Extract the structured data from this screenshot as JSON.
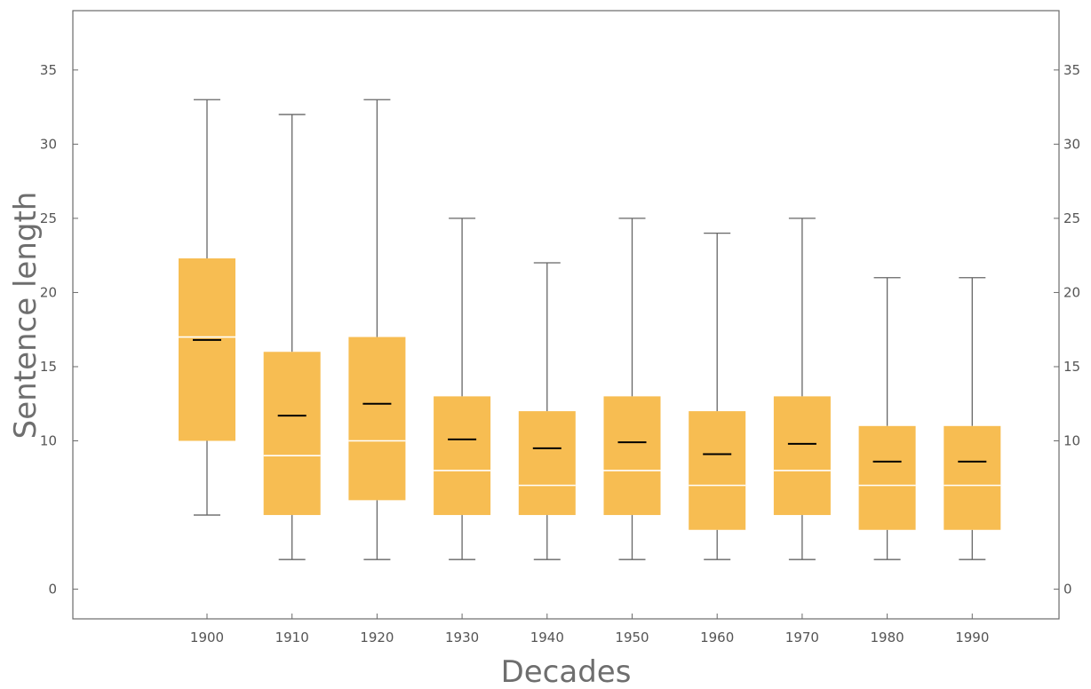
{
  "chart_data": {
    "type": "box",
    "xlabel": "Decades",
    "ylabel": "Sentence length",
    "ylim": [
      -2,
      39
    ],
    "yticks": [
      0,
      10,
      15,
      20,
      25,
      30,
      35
    ],
    "grid": false,
    "box_color": "#f7bd52",
    "median_color": "#ffffff",
    "mean_color": "#000000",
    "whisker_color": "#666666",
    "categories": [
      "1900",
      "1910",
      "1920",
      "1930",
      "1940",
      "1950",
      "1960",
      "1970",
      "1980",
      "1990"
    ],
    "boxes": [
      {
        "category": "1900",
        "min": 5,
        "q1": 10,
        "median": 17,
        "q3": 22.3,
        "max": 33,
        "mean": 16.8
      },
      {
        "category": "1910",
        "min": 2,
        "q1": 5,
        "median": 9,
        "q3": 16,
        "max": 32,
        "mean": 11.7
      },
      {
        "category": "1920",
        "min": 2,
        "q1": 6,
        "median": 10,
        "q3": 17,
        "max": 33,
        "mean": 12.5
      },
      {
        "category": "1930",
        "min": 2,
        "q1": 5,
        "median": 8,
        "q3": 13,
        "max": 25,
        "mean": 10.1
      },
      {
        "category": "1940",
        "min": 2,
        "q1": 5,
        "median": 7,
        "q3": 12,
        "max": 22,
        "mean": 9.5
      },
      {
        "category": "1950",
        "min": 2,
        "q1": 5,
        "median": 8,
        "q3": 13,
        "max": 25,
        "mean": 9.9
      },
      {
        "category": "1960",
        "min": 2,
        "q1": 4,
        "median": 7,
        "q3": 12,
        "max": 24,
        "mean": 9.1
      },
      {
        "category": "1970",
        "min": 2,
        "q1": 5,
        "median": 8,
        "q3": 13,
        "max": 25,
        "mean": 9.8
      },
      {
        "category": "1980",
        "min": 2,
        "q1": 4,
        "median": 7,
        "q3": 11,
        "max": 21,
        "mean": 8.6
      },
      {
        "category": "1990",
        "min": 2,
        "q1": 4,
        "median": 7,
        "q3": 11,
        "max": 21,
        "mean": 8.6
      }
    ]
  }
}
